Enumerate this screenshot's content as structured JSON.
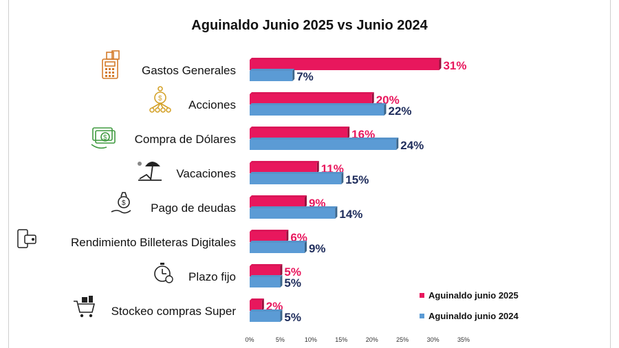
{
  "chart_data": {
    "type": "bar",
    "title": "Aguinaldo Junio 2025 vs Junio 2024",
    "categories": [
      "Gastos Generales",
      "Acciones",
      "Compra de Dólares",
      "Vacaciones",
      "Pago de deudas",
      "Rendimiento Billeteras Digitales",
      "Plazo fijo",
      "Stockeo compras Super"
    ],
    "series": [
      {
        "name": "Aguinaldo junio 2025",
        "values": [
          31,
          20,
          16,
          11,
          9,
          6,
          5,
          2
        ],
        "labels": [
          "31%",
          "20%",
          "16%",
          "11%",
          "9%",
          "6%",
          "5%",
          "2%"
        ],
        "color": "#e8175d"
      },
      {
        "name": "Aguinaldo junio 2024",
        "values": [
          7,
          22,
          24,
          15,
          14,
          9,
          5,
          5
        ],
        "labels": [
          "7%",
          "22%",
          "24%",
          "15%",
          "14%",
          "9%",
          "5%",
          "5%"
        ],
        "color": "#5b9bd5"
      }
    ],
    "xlim": [
      0,
      35
    ],
    "xticks": [
      "0%",
      "5%",
      "10%",
      "15%",
      "20%",
      "25%",
      "30%",
      "35%"
    ],
    "legend_position": "bottom-right",
    "icons": [
      "calculator-money-icon",
      "investment-network-icon",
      "dollar-bills-icon",
      "beach-umbrella-icon",
      "hand-money-bag-icon",
      "digital-wallet-icon",
      "stopwatch-money-icon",
      "shopping-cart-icon"
    ]
  }
}
